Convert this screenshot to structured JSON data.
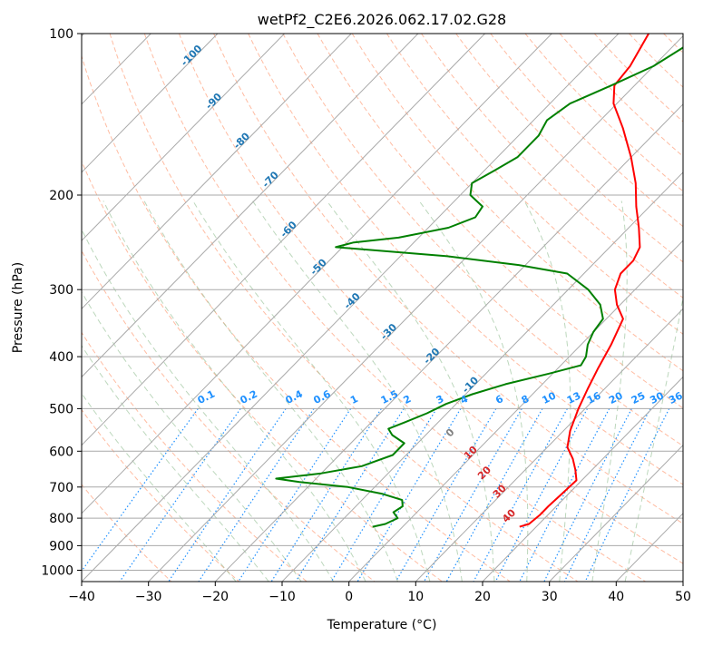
{
  "chart_data": {
    "type": "skew-t log-p",
    "title": "wetPf2_C2E6.2026.062.17.02.G28",
    "xlabel": "Temperature (°C)",
    "ylabel": "Pressure (hPa)",
    "xlim": [
      -40,
      50
    ],
    "ylim": [
      1050,
      100
    ],
    "x_ticks": [
      -40,
      -30,
      -20,
      -10,
      0,
      10,
      20,
      30,
      40,
      50
    ],
    "y_ticks": [
      100,
      200,
      300,
      400,
      500,
      600,
      700,
      800,
      900,
      1000
    ],
    "y_scale": "log",
    "grid": true,
    "series": [
      {
        "kind": "temperature",
        "color": "#ff0000",
        "points": [
          {
            "p": 830,
            "t": 17.5
          },
          {
            "p": 820,
            "t": 18.5
          },
          {
            "p": 790,
            "t": 18.8
          },
          {
            "p": 760,
            "t": 18.8
          },
          {
            "p": 720,
            "t": 19.0
          },
          {
            "p": 680,
            "t": 19.2
          },
          {
            "p": 650,
            "t": 17.5
          },
          {
            "p": 620,
            "t": 15.5
          },
          {
            "p": 590,
            "t": 13.0
          },
          {
            "p": 550,
            "t": 11.0
          },
          {
            "p": 500,
            "t": 9.0
          },
          {
            "p": 460,
            "t": 7.5
          },
          {
            "p": 420,
            "t": 6.0
          },
          {
            "p": 380,
            "t": 4.5
          },
          {
            "p": 340,
            "t": 2.5
          },
          {
            "p": 320,
            "t": -0.5
          },
          {
            "p": 300,
            "t": -3.0
          },
          {
            "p": 280,
            "t": -4.5
          },
          {
            "p": 265,
            "t": -4.5
          },
          {
            "p": 250,
            "t": -5.5
          },
          {
            "p": 230,
            "t": -8.5
          },
          {
            "p": 210,
            "t": -12.0
          },
          {
            "p": 190,
            "t": -15.5
          },
          {
            "p": 170,
            "t": -20.0
          },
          {
            "p": 150,
            "t": -25.5
          },
          {
            "p": 135,
            "t": -30.5
          },
          {
            "p": 125,
            "t": -33.0
          },
          {
            "p": 115,
            "t": -33.5
          },
          {
            "p": 100,
            "t": -35.5
          }
        ]
      },
      {
        "kind": "dewpoint",
        "color": "#008000",
        "points": [
          {
            "p": 830,
            "t": -4.5
          },
          {
            "p": 820,
            "t": -3.0
          },
          {
            "p": 800,
            "t": -2.0
          },
          {
            "p": 780,
            "t": -3.5
          },
          {
            "p": 760,
            "t": -3.0
          },
          {
            "p": 740,
            "t": -4.0
          },
          {
            "p": 720,
            "t": -8.0
          },
          {
            "p": 700,
            "t": -14.0
          },
          {
            "p": 685,
            "t": -22.0
          },
          {
            "p": 675,
            "t": -26.0
          },
          {
            "p": 660,
            "t": -20.0
          },
          {
            "p": 640,
            "t": -15.0
          },
          {
            "p": 610,
            "t": -12.0
          },
          {
            "p": 580,
            "t": -12.0
          },
          {
            "p": 560,
            "t": -15.0
          },
          {
            "p": 545,
            "t": -16.5
          },
          {
            "p": 530,
            "t": -15.0
          },
          {
            "p": 510,
            "t": -13.0
          },
          {
            "p": 490,
            "t": -11.5
          },
          {
            "p": 470,
            "t": -9.0
          },
          {
            "p": 450,
            "t": -5.5
          },
          {
            "p": 430,
            "t": -0.5
          },
          {
            "p": 415,
            "t": 3.0
          },
          {
            "p": 400,
            "t": 2.5
          },
          {
            "p": 380,
            "t": 1.0
          },
          {
            "p": 360,
            "t": 0.0
          },
          {
            "p": 340,
            "t": -0.5
          },
          {
            "p": 320,
            "t": -3.0
          },
          {
            "p": 300,
            "t": -7.0
          },
          {
            "p": 280,
            "t": -12.5
          },
          {
            "p": 270,
            "t": -21.0
          },
          {
            "p": 260,
            "t": -33.0
          },
          {
            "p": 250,
            "t": -51.0
          },
          {
            "p": 245,
            "t": -49.0
          },
          {
            "p": 240,
            "t": -43.0
          },
          {
            "p": 230,
            "t": -37.0
          },
          {
            "p": 220,
            "t": -34.5
          },
          {
            "p": 210,
            "t": -35.0
          },
          {
            "p": 200,
            "t": -38.5
          },
          {
            "p": 190,
            "t": -40.0
          },
          {
            "p": 180,
            "t": -38.5
          },
          {
            "p": 170,
            "t": -37.0
          },
          {
            "p": 155,
            "t": -37.0
          },
          {
            "p": 145,
            "t": -38.0
          },
          {
            "p": 135,
            "t": -37.0
          },
          {
            "p": 125,
            "t": -33.5
          },
          {
            "p": 115,
            "t": -30.0
          },
          {
            "p": 100,
            "t": -27.0
          }
        ]
      }
    ],
    "isotherm_labels": [
      "-100",
      "-90",
      "-80",
      "-70",
      "-60",
      "-50",
      "-40",
      "-30",
      "-20",
      "-10"
    ],
    "mixing_ratio_labels": [
      "0.1",
      "0.2",
      "0.4",
      "0.6",
      "1",
      "1.5",
      "2",
      "3",
      "4",
      "6",
      "8",
      "10",
      "13",
      "16",
      "20",
      "25",
      "30",
      "36"
    ],
    "moist_adiabat_labels": [
      "0",
      "10",
      "20",
      "30",
      "40"
    ],
    "colors": {
      "isotherm_label": "#1f77b4",
      "mixing_ratio": "#1e90ff",
      "moist_label_zero": "#808080",
      "moist_label": "#d62728",
      "dry_adiabat": "#ffa07a",
      "moist_adiabat": "#8fbc8f",
      "grid": "#a9a9a9"
    }
  }
}
